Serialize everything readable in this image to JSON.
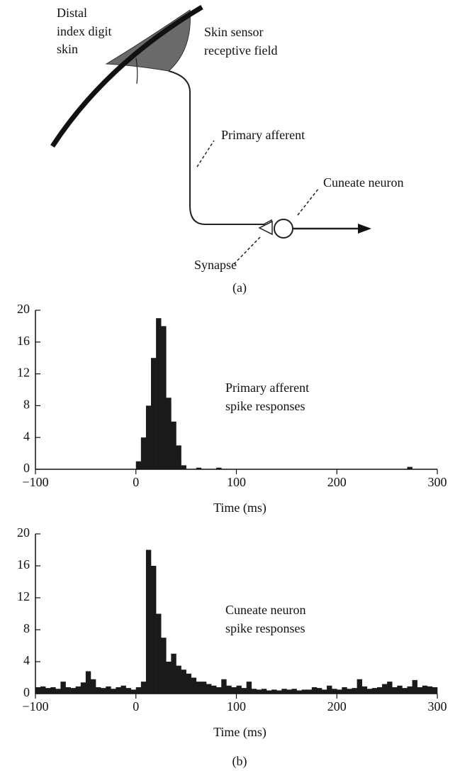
{
  "diagram": {
    "labels": {
      "distal": [
        "Distal",
        "index digit",
        "skin"
      ],
      "receptive": [
        "Skin sensor",
        "receptive field"
      ],
      "afferent": "Primary afferent",
      "cuneate": "Cuneate neuron",
      "synapse": "Synapse"
    }
  },
  "panel_labels": [
    "(a)",
    "(b)"
  ],
  "chart_data": [
    {
      "type": "histogram",
      "xlabel": "Time (ms)",
      "annotation": [
        "Primary afferent",
        "spike responses"
      ],
      "color": "#1a1a1a",
      "bins": [
        -100,
        -95,
        -90,
        -85,
        -80,
        -75,
        -70,
        -65,
        -60,
        -55,
        -50,
        -45,
        -40,
        -35,
        -30,
        -25,
        -20,
        -15,
        -10,
        -5,
        0,
        5,
        10,
        15,
        20,
        25,
        30,
        35,
        40,
        45,
        50,
        55,
        60,
        65,
        70,
        75,
        80,
        85,
        90,
        95,
        100,
        105,
        110,
        115,
        120,
        125,
        130,
        135,
        140,
        145,
        150,
        155,
        160,
        165,
        170,
        175,
        180,
        185,
        190,
        195,
        200,
        205,
        210,
        215,
        220,
        225,
        230,
        235,
        240,
        245,
        250,
        255,
        260,
        265,
        270,
        275,
        280,
        285,
        290,
        295,
        300
      ],
      "counts": [
        0,
        0,
        0,
        0,
        0,
        0,
        0,
        0,
        0,
        0,
        0,
        0,
        0,
        0,
        0,
        0,
        0,
        0,
        0,
        0,
        1,
        4,
        8,
        14,
        19,
        18,
        9,
        6,
        3,
        0.5,
        0,
        0,
        0.2,
        0,
        0,
        0,
        0.2,
        0,
        0,
        0,
        0,
        0,
        0,
        0,
        0,
        0,
        0,
        0,
        0,
        0,
        0,
        0,
        0,
        0,
        0,
        0,
        0,
        0,
        0,
        0,
        0,
        0,
        0,
        0,
        0,
        0,
        0,
        0,
        0,
        0,
        0,
        0,
        0,
        0,
        0.3,
        0,
        0,
        0,
        0,
        0
      ],
      "xlim": [
        -100,
        300
      ],
      "ylim": [
        0,
        20
      ],
      "xticks": [
        {
          "value": -100,
          "label": "−100"
        },
        0,
        100,
        200,
        300
      ],
      "yticks": [
        0,
        4,
        8,
        12,
        16,
        20
      ]
    },
    {
      "type": "histogram",
      "xlabel": "Time (ms)",
      "annotation": [
        "Cuneate neuron",
        "spike responses"
      ],
      "color": "#1a1a1a",
      "bins": [
        -100,
        -95,
        -90,
        -85,
        -80,
        -75,
        -70,
        -65,
        -60,
        -55,
        -50,
        -45,
        -40,
        -35,
        -30,
        -25,
        -20,
        -15,
        -10,
        -5,
        0,
        5,
        10,
        15,
        20,
        25,
        30,
        35,
        40,
        45,
        50,
        55,
        60,
        65,
        70,
        75,
        80,
        85,
        90,
        95,
        100,
        105,
        110,
        115,
        120,
        125,
        130,
        135,
        140,
        145,
        150,
        155,
        160,
        165,
        170,
        175,
        180,
        185,
        190,
        195,
        200,
        205,
        210,
        215,
        220,
        225,
        230,
        235,
        240,
        245,
        250,
        255,
        260,
        265,
        270,
        275,
        280,
        285,
        290,
        295,
        300
      ],
      "counts": [
        0.8,
        0.9,
        0.7,
        0.8,
        0.6,
        1.5,
        0.8,
        0.7,
        0.9,
        1.4,
        2.8,
        1.8,
        0.8,
        0.7,
        0.9,
        0.6,
        0.8,
        1.0,
        0.7,
        0.5,
        0.8,
        1.5,
        18,
        16,
        10,
        7,
        4,
        5,
        3.5,
        3,
        2.5,
        2,
        1.5,
        1.5,
        1.2,
        1,
        0.8,
        1.8,
        1,
        0.8,
        1,
        0.7,
        1.5,
        0.6,
        0.5,
        0.6,
        0.4,
        0.5,
        0.4,
        0.6,
        0.5,
        0.6,
        0.4,
        0.5,
        0.5,
        0.8,
        0.7,
        0.5,
        1.0,
        0.6,
        0.5,
        0.8,
        0.6,
        0.7,
        1.8,
        0.9,
        0.6,
        0.7,
        0.8,
        1.2,
        1.5,
        0.8,
        1.0,
        0.7,
        0.9,
        1.7,
        0.8,
        1.0,
        0.9,
        0.8
      ],
      "xlim": [
        -100,
        300
      ],
      "ylim": [
        0,
        20
      ],
      "xticks": [
        {
          "value": -100,
          "label": "−100"
        },
        0,
        100,
        200,
        300
      ],
      "yticks": [
        0,
        4,
        8,
        12,
        16,
        20
      ]
    }
  ]
}
